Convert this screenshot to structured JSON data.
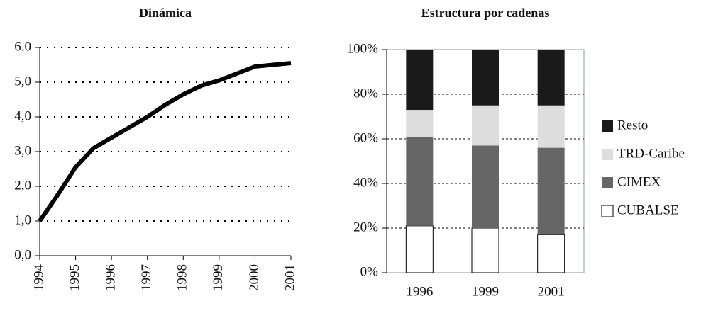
{
  "chart_data": [
    {
      "type": "line",
      "title": "Dinámica",
      "x": [
        1994,
        1994.5,
        1995,
        1995.5,
        1996,
        1996.5,
        1997,
        1997.5,
        1998,
        1998.5,
        1999,
        1999.5,
        2000,
        2000.5,
        2001
      ],
      "values": [
        1.0,
        1.75,
        2.55,
        3.1,
        3.4,
        3.7,
        4.0,
        4.35,
        4.65,
        4.9,
        5.05,
        5.25,
        5.45,
        5.5,
        5.55
      ],
      "color": "#000000",
      "xlim": [
        1994,
        2001
      ],
      "xticks": [
        1994,
        1995,
        1996,
        1997,
        1998,
        1999,
        2000,
        2001
      ],
      "ylim": [
        0,
        6
      ],
      "yticks": [
        {
          "value": 0,
          "label": "0,0"
        },
        {
          "value": 1,
          "label": "1,0"
        },
        {
          "value": 2,
          "label": "2,0"
        },
        {
          "value": 3,
          "label": "3,0"
        },
        {
          "value": 4,
          "label": "4,0"
        },
        {
          "value": 5,
          "label": "5,0"
        },
        {
          "value": 6,
          "label": "6,0"
        }
      ],
      "grid": true
    },
    {
      "type": "stacked_bar",
      "title": "Estructura por cadenas",
      "categories": [
        "1996",
        "1999",
        "2001"
      ],
      "series": [
        {
          "name": "CUBALSE",
          "color": "#ffffff",
          "values": [
            21,
            20,
            17
          ]
        },
        {
          "name": "CIMEX",
          "color": "#666666",
          "values": [
            40,
            37,
            39
          ]
        },
        {
          "name": "TRD-Caribe",
          "color": "#dddddd",
          "values": [
            12,
            18,
            19
          ]
        },
        {
          "name": "Resto",
          "color": "#1a1a1a",
          "values": [
            27,
            25,
            25
          ]
        }
      ],
      "ylim": [
        0,
        100
      ],
      "yticks": [
        {
          "value": 0,
          "label": "0%"
        },
        {
          "value": 20,
          "label": "20%"
        },
        {
          "value": 40,
          "label": "40%"
        },
        {
          "value": 60,
          "label": "60%"
        },
        {
          "value": 80,
          "label": "80%"
        },
        {
          "value": 100,
          "label": "100%"
        }
      ],
      "grid": true
    }
  ]
}
